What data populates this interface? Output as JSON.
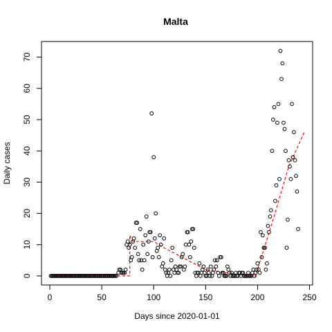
{
  "chart_data": {
    "type": "scatter",
    "title": "Malta",
    "xlabel": "Days since 2020-01-01",
    "ylabel": "Daily cases",
    "xlim": [
      -8,
      253
    ],
    "ylim": [
      -2.9,
      75
    ],
    "x_ticks": [
      0,
      50,
      100,
      150,
      200,
      250
    ],
    "y_ticks": [
      0,
      10,
      20,
      30,
      40,
      50,
      60,
      70
    ],
    "series": [
      {
        "marker": "open-circle",
        "color": "#000000",
        "points": [
          [
            1,
            0
          ],
          [
            2,
            0
          ],
          [
            3,
            0
          ],
          [
            4,
            0
          ],
          [
            5,
            0
          ],
          [
            6,
            0
          ],
          [
            7,
            0
          ],
          [
            8,
            0
          ],
          [
            9,
            0
          ],
          [
            10,
            0
          ],
          [
            11,
            0
          ],
          [
            12,
            0
          ],
          [
            13,
            0
          ],
          [
            14,
            0
          ],
          [
            15,
            0
          ],
          [
            16,
            0
          ],
          [
            17,
            0
          ],
          [
            18,
            0
          ],
          [
            19,
            0
          ],
          [
            20,
            0
          ],
          [
            21,
            0
          ],
          [
            22,
            0
          ],
          [
            23,
            0
          ],
          [
            24,
            0
          ],
          [
            25,
            0
          ],
          [
            26,
            0
          ],
          [
            27,
            0
          ],
          [
            28,
            0
          ],
          [
            29,
            0
          ],
          [
            30,
            0
          ],
          [
            31,
            0
          ],
          [
            32,
            0
          ],
          [
            33,
            0
          ],
          [
            34,
            0
          ],
          [
            35,
            0
          ],
          [
            36,
            0
          ],
          [
            37,
            0
          ],
          [
            38,
            0
          ],
          [
            39,
            0
          ],
          [
            40,
            0
          ],
          [
            41,
            0
          ],
          [
            42,
            0
          ],
          [
            43,
            0
          ],
          [
            44,
            0
          ],
          [
            45,
            0
          ],
          [
            46,
            0
          ],
          [
            47,
            0
          ],
          [
            48,
            0
          ],
          [
            49,
            0
          ],
          [
            50,
            0
          ],
          [
            51,
            0
          ],
          [
            52,
            0
          ],
          [
            53,
            0
          ],
          [
            54,
            0
          ],
          [
            55,
            0
          ],
          [
            56,
            0
          ],
          [
            57,
            0
          ],
          [
            58,
            0
          ],
          [
            59,
            0
          ],
          [
            60,
            0
          ],
          [
            61,
            0
          ],
          [
            62,
            0
          ],
          [
            63,
            0
          ],
          [
            64,
            0
          ],
          [
            66,
            1
          ],
          [
            67,
            2
          ],
          [
            68,
            2
          ],
          [
            69,
            1
          ],
          [
            70,
            1
          ],
          [
            71,
            1
          ],
          [
            72,
            1
          ],
          [
            73,
            2
          ],
          [
            74,
            10
          ],
          [
            75,
            11
          ],
          [
            76,
            9
          ],
          [
            77,
            10
          ],
          [
            78,
            5
          ],
          [
            79,
            6
          ],
          [
            80,
            11
          ],
          [
            81,
            12
          ],
          [
            82,
            9
          ],
          [
            83,
            17
          ],
          [
            84,
            17
          ],
          [
            85,
            7
          ],
          [
            86,
            5
          ],
          [
            87,
            15
          ],
          [
            88,
            5
          ],
          [
            89,
            2
          ],
          [
            90,
            10
          ],
          [
            91,
            5
          ],
          [
            92,
            13
          ],
          [
            93,
            19
          ],
          [
            94,
            7
          ],
          [
            95,
            11
          ],
          [
            96,
            14
          ],
          [
            97,
            14
          ],
          [
            98,
            52
          ],
          [
            99,
            6
          ],
          [
            100,
            38
          ],
          [
            101,
            12
          ],
          [
            102,
            20
          ],
          [
            103,
            8
          ],
          [
            104,
            9
          ],
          [
            105,
            6
          ],
          [
            106,
            13
          ],
          [
            107,
            10
          ],
          [
            108,
            3
          ],
          [
            109,
            4
          ],
          [
            110,
            12
          ],
          [
            111,
            2
          ],
          [
            112,
            1
          ],
          [
            113,
            0
          ],
          [
            114,
            1
          ],
          [
            115,
            2
          ],
          [
            116,
            0
          ],
          [
            117,
            5
          ],
          [
            118,
            9
          ],
          [
            119,
            2
          ],
          [
            120,
            1
          ],
          [
            121,
            3
          ],
          [
            122,
            2
          ],
          [
            123,
            1
          ],
          [
            124,
            1
          ],
          [
            125,
            3
          ],
          [
            126,
            3
          ],
          [
            127,
            6
          ],
          [
            128,
            7
          ],
          [
            129,
            2
          ],
          [
            130,
            3
          ],
          [
            131,
            10
          ],
          [
            132,
            14
          ],
          [
            133,
            14
          ],
          [
            134,
            10
          ],
          [
            135,
            6
          ],
          [
            136,
            11
          ],
          [
            137,
            15
          ],
          [
            138,
            15
          ],
          [
            139,
            9
          ],
          [
            140,
            1
          ],
          [
            141,
            0
          ],
          [
            142,
            1
          ],
          [
            143,
            1
          ],
          [
            144,
            4
          ],
          [
            145,
            0
          ],
          [
            146,
            1
          ],
          [
            147,
            2
          ],
          [
            148,
            3
          ],
          [
            149,
            1
          ],
          [
            150,
            0
          ],
          [
            151,
            0
          ],
          [
            152,
            2
          ],
          [
            153,
            1
          ],
          [
            154,
            0
          ],
          [
            155,
            3
          ],
          [
            156,
            0
          ],
          [
            157,
            1
          ],
          [
            158,
            2
          ],
          [
            159,
            5
          ],
          [
            160,
            3
          ],
          [
            161,
            5
          ],
          [
            162,
            1
          ],
          [
            163,
            0
          ],
          [
            164,
            6
          ],
          [
            165,
            6
          ],
          [
            166,
            1
          ],
          [
            167,
            1
          ],
          [
            168,
            0
          ],
          [
            169,
            0
          ],
          [
            170,
            0
          ],
          [
            171,
            3
          ],
          [
            172,
            2
          ],
          [
            173,
            1
          ],
          [
            174,
            0
          ],
          [
            175,
            1
          ],
          [
            176,
            0
          ],
          [
            177,
            0
          ],
          [
            178,
            0
          ],
          [
            179,
            1
          ],
          [
            180,
            0
          ],
          [
            181,
            0
          ],
          [
            182,
            1
          ],
          [
            183,
            1
          ],
          [
            184,
            0
          ],
          [
            185,
            1
          ],
          [
            186,
            1
          ],
          [
            187,
            0
          ],
          [
            188,
            0
          ],
          [
            189,
            0
          ],
          [
            190,
            0
          ],
          [
            191,
            1
          ],
          [
            192,
            0
          ],
          [
            193,
            0
          ],
          [
            194,
            0
          ],
          [
            195,
            1
          ],
          [
            196,
            2
          ],
          [
            197,
            0
          ],
          [
            198,
            1
          ],
          [
            199,
            2
          ],
          [
            200,
            4
          ],
          [
            201,
            2
          ],
          [
            202,
            1
          ],
          [
            203,
            14
          ],
          [
            204,
            6
          ],
          [
            205,
            13
          ],
          [
            206,
            9
          ],
          [
            207,
            9
          ],
          [
            208,
            2
          ],
          [
            209,
            4
          ],
          [
            210,
            16
          ],
          [
            211,
            14
          ],
          [
            212,
            19
          ],
          [
            213,
            21
          ],
          [
            214,
            40
          ],
          [
            215,
            50
          ],
          [
            216,
            54
          ],
          [
            217,
            24
          ],
          [
            218,
            29
          ],
          [
            219,
            49
          ],
          [
            220,
            55
          ],
          [
            221,
            31
          ],
          [
            222,
            72
          ],
          [
            223,
            63
          ],
          [
            224,
            68
          ],
          [
            225,
            49
          ],
          [
            226,
            47
          ],
          [
            227,
            40
          ],
          [
            228,
            9
          ],
          [
            229,
            18
          ],
          [
            230,
            37
          ],
          [
            231,
            35
          ],
          [
            232,
            31
          ],
          [
            233,
            55
          ],
          [
            234,
            38
          ],
          [
            235,
            46
          ],
          [
            236,
            37
          ],
          [
            237,
            32
          ],
          [
            238,
            27
          ],
          [
            239,
            15
          ]
        ]
      },
      {
        "line": "dashed",
        "color": "#ff0000",
        "points": [
          [
            0,
            0
          ],
          [
            65,
            0
          ],
          [
            77,
            0
          ],
          [
            77,
            13
          ],
          [
            80,
            11
          ],
          [
            100,
            11
          ],
          [
            110,
            9
          ],
          [
            150,
            2
          ],
          [
            190,
            0
          ],
          [
            198,
            0
          ],
          [
            215,
            18
          ],
          [
            230,
            35
          ],
          [
            245,
            46
          ]
        ]
      }
    ]
  }
}
